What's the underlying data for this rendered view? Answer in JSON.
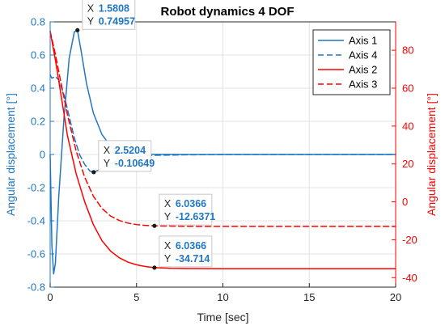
{
  "chart_data": {
    "type": "line",
    "title": "Robot dynamics 4 DOF",
    "xlabel": "Time [sec]",
    "ylabel_left": "Angular displacement [°]",
    "ylabel_right": "Angular displacement [°]",
    "xlim": [
      0,
      20
    ],
    "ylim_left": [
      -0.8,
      0.8
    ],
    "ylim_right": [
      -45,
      95
    ],
    "xticks": [
      "0",
      "5",
      "10",
      "15",
      "20"
    ],
    "yticks_left": [
      "-0.8",
      "-0.6",
      "-0.4",
      "-0.2",
      "0",
      "0.2",
      "0.4",
      "0.6",
      "0.8"
    ],
    "yticks_right": [
      "-40",
      "-20",
      "0",
      "20",
      "40",
      "60",
      "80"
    ],
    "grid": true,
    "legend_position": "top-right",
    "colors": {
      "left_axis": "#1f77c4",
      "right_axis": "#ff0000",
      "annotation_value": "#1f77c4"
    },
    "series": [
      {
        "name": "Axis 1",
        "axis": "left",
        "color": "#1f77c4",
        "style": "solid",
        "x": [
          0,
          0.1,
          0.2,
          0.3,
          0.5,
          0.8,
          1.1,
          1.4,
          1.5808,
          1.8,
          2.1,
          2.5,
          3.0,
          3.5,
          4.0,
          4.5,
          5.0,
          6.0,
          8.0,
          10.0,
          15.0,
          20.0
        ],
        "y": [
          0,
          -0.55,
          -0.72,
          -0.66,
          -0.25,
          0.22,
          0.58,
          0.74,
          0.74957,
          0.62,
          0.43,
          0.25,
          0.12,
          0.05,
          0.02,
          0.008,
          0.004,
          0.001,
          0,
          0,
          0,
          0
        ]
      },
      {
        "name": "Axis 4",
        "axis": "left",
        "color": "#1f77c4",
        "style": "dashed",
        "x": [
          0,
          0.1,
          0.3,
          0.5,
          0.8,
          1.1,
          1.4,
          1.7,
          2.0,
          2.3,
          2.5204,
          2.8,
          3.2,
          3.6,
          4.0,
          4.5,
          5.0,
          6.0,
          8.0,
          10.0,
          15.0,
          20.0
        ],
        "y": [
          0.48,
          0.46,
          0.47,
          0.45,
          0.36,
          0.23,
          0.1,
          0.0,
          -0.06,
          -0.1,
          -0.10649,
          -0.095,
          -0.07,
          -0.05,
          -0.035,
          -0.02,
          -0.012,
          -0.005,
          -0.002,
          0,
          0,
          0
        ]
      },
      {
        "name": "Axis 2",
        "axis": "right",
        "color": "#ff0000",
        "style": "solid",
        "x": [
          0,
          0.3,
          0.6,
          1.0,
          1.5,
          2.0,
          2.5,
          3.0,
          3.5,
          4.0,
          4.5,
          5.0,
          5.5,
          6.0366,
          7.0,
          8.0,
          10.0,
          15.0,
          20.0
        ],
        "y": [
          90,
          75,
          58,
          35,
          15,
          0,
          -12,
          -20.5,
          -26,
          -29.5,
          -31.8,
          -33.2,
          -34.1,
          -34.714,
          -35.1,
          -35.2,
          -35.3,
          -35.3,
          -35.3
        ]
      },
      {
        "name": "Axis 3",
        "axis": "right",
        "color": "#ff0000",
        "style": "dashed",
        "x": [
          0,
          0.3,
          0.6,
          1.0,
          1.5,
          2.0,
          2.5,
          3.0,
          3.5,
          4.0,
          4.5,
          5.0,
          5.5,
          6.0366,
          7.0,
          8.0,
          10.0,
          15.0,
          20.0
        ],
        "y": [
          90,
          78,
          64,
          46,
          27,
          13,
          3,
          -3.5,
          -7.5,
          -9.8,
          -11.2,
          -12.0,
          -12.4,
          -12.6371,
          -12.8,
          -12.9,
          -12.95,
          -12.95,
          -12.95
        ]
      }
    ],
    "datatips": [
      {
        "series": "Axis 1",
        "axis": "left",
        "x_label": "X",
        "x_value": "1.5808",
        "y_label": "Y",
        "y_value": "0.74957",
        "x": 1.5808,
        "y": 0.74957
      },
      {
        "series": "Axis 4",
        "axis": "left",
        "x_label": "X",
        "x_value": "2.5204",
        "y_label": "Y",
        "y_value": "-0.10649",
        "x": 2.5204,
        "y": -0.10649
      },
      {
        "series": "Axis 3",
        "axis": "right",
        "x_label": "X",
        "x_value": "6.0366",
        "y_label": "Y",
        "y_value": "-12.6371",
        "x": 6.0366,
        "y": -12.6371
      },
      {
        "series": "Axis 2",
        "axis": "right",
        "x_label": "X",
        "x_value": "6.0366",
        "y_label": "Y",
        "y_value": "-34.714",
        "x": 6.0366,
        "y": -34.714
      }
    ]
  }
}
